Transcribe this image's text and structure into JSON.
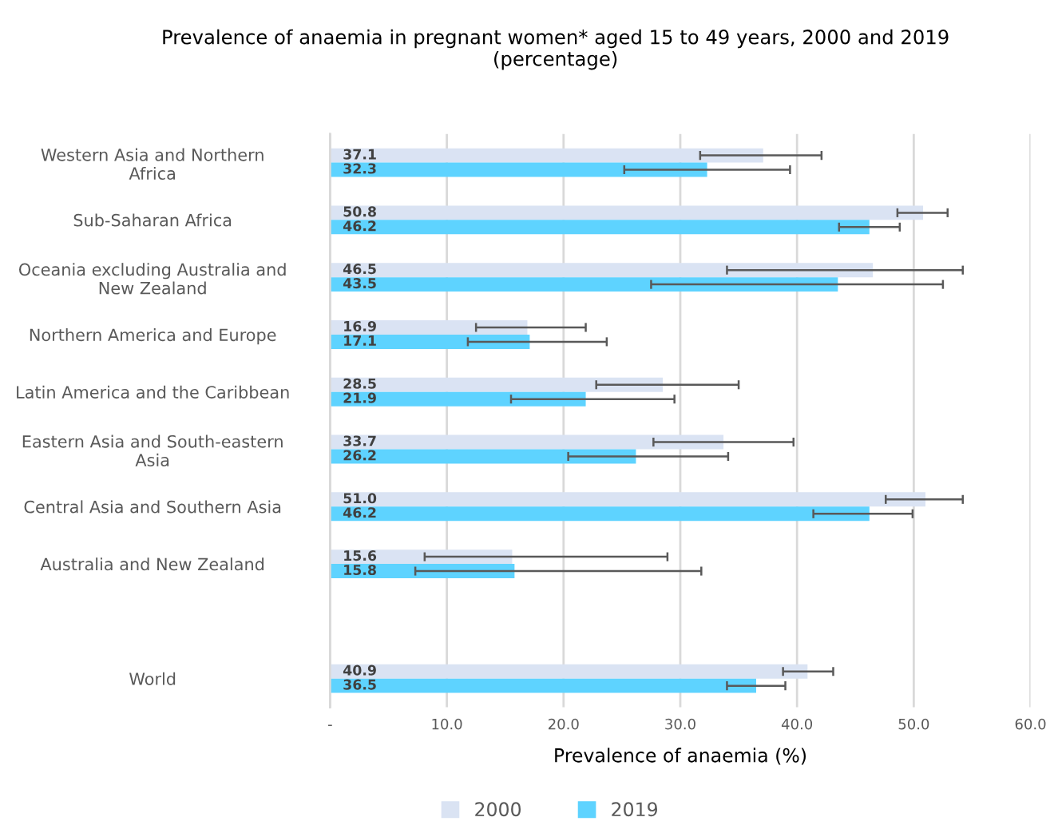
{
  "chart_data": {
    "type": "bar",
    "orientation": "horizontal",
    "title": "Prevalence of anaemia in pregnant women* aged 15 to 49 years, 2000 and 2019\n(percentage)",
    "xlabel": "Prevalence of anaemia (%)",
    "categories": [
      "Western Asia and Northern\nAfrica",
      "Sub-Saharan Africa",
      "Oceania excluding Australia and\nNew Zealand",
      "Northern America and Europe",
      "Latin America and the Caribbean",
      "Eastern Asia and South-eastern\nAsia",
      "Central Asia and Southern Asia",
      "Australia and New Zealand",
      null,
      "World"
    ],
    "series": [
      {
        "name": "2000",
        "color": "#dae3f3",
        "values": [
          37.1,
          50.8,
          46.5,
          16.9,
          28.5,
          33.7,
          51.0,
          15.6,
          null,
          40.9
        ],
        "value_labels": [
          "37.1",
          "50.8",
          "46.5",
          "16.9",
          "28.5",
          "33.7",
          "51.0",
          "15.6",
          null,
          "40.9"
        ],
        "errors": [
          [
            31.7,
            42.1
          ],
          [
            48.6,
            52.9
          ],
          [
            34.0,
            54.2
          ],
          [
            12.5,
            21.9
          ],
          [
            22.8,
            35.0
          ],
          [
            27.7,
            39.7
          ],
          [
            47.6,
            54.2
          ],
          [
            8.1,
            28.9
          ],
          null,
          [
            38.8,
            43.1
          ]
        ]
      },
      {
        "name": "2019",
        "color": "#5ed3ff",
        "values": [
          32.3,
          46.2,
          43.5,
          17.1,
          21.9,
          26.2,
          46.2,
          15.8,
          null,
          36.5
        ],
        "value_labels": [
          "32.3",
          "46.2",
          "43.5",
          "17.1",
          "21.9",
          "26.2",
          "46.2",
          "15.8",
          null,
          "36.5"
        ],
        "errors": [
          [
            25.2,
            39.4
          ],
          [
            43.6,
            48.8
          ],
          [
            27.5,
            52.5
          ],
          [
            11.8,
            23.7
          ],
          [
            15.5,
            29.5
          ],
          [
            20.4,
            34.1
          ],
          [
            41.4,
            49.9
          ],
          [
            7.3,
            31.8
          ],
          null,
          [
            34.0,
            39.0
          ]
        ]
      }
    ],
    "xlim": [
      0,
      60
    ],
    "xticks": [
      {
        "value": 0,
        "label": "-"
      },
      {
        "value": 10,
        "label": "10.0"
      },
      {
        "value": 20,
        "label": "20.0"
      },
      {
        "value": 30,
        "label": "30.0"
      },
      {
        "value": 40,
        "label": "40.0"
      },
      {
        "value": 50,
        "label": "50.0"
      },
      {
        "value": 60,
        "label": "60.0"
      }
    ],
    "grid": "x",
    "legend": "bottom"
  }
}
